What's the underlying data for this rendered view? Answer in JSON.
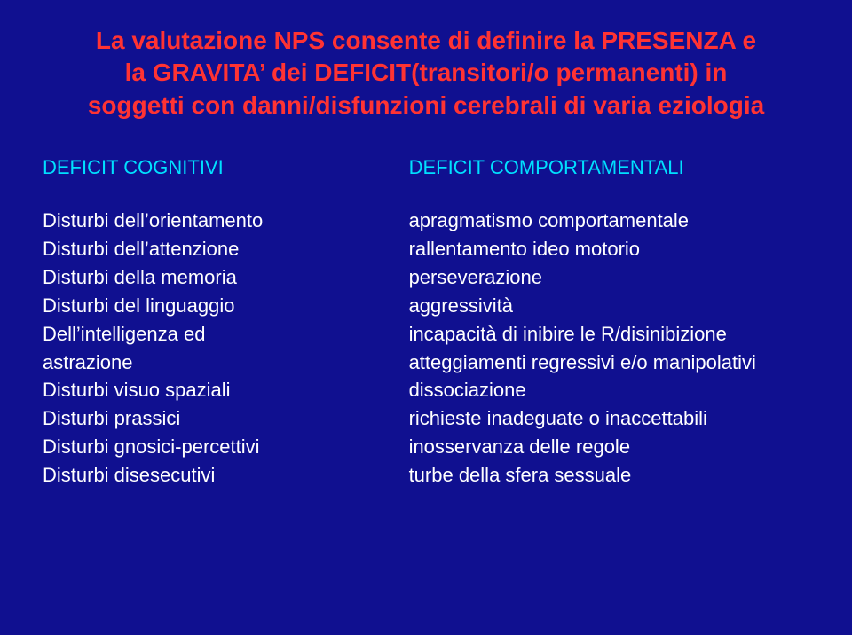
{
  "background_color": "#101090",
  "title": {
    "color": "#ff3333",
    "line1": "La valutazione NPS consente di definire la PRESENZA e",
    "line2": "la GRAVITA’ dei DEFICIT(transitori/o permanenti) in",
    "line3": "soggetti con danni/disfunzioni cerebrali di varia eziologia"
  },
  "left": {
    "header": "DEFICIT COGNITIVI",
    "header_color": "#00e0ff",
    "items": [
      "Disturbi dell’orientamento",
      "Disturbi dell’attenzione",
      "Disturbi della memoria",
      "Disturbi del linguaggio",
      "Dell’intelligenza ed",
      "astrazione",
      "Disturbi visuo spaziali",
      "Disturbi prassici",
      "Disturbi gnosici-percettivi",
      "Disturbi disesecutivi"
    ]
  },
  "right": {
    "header": "DEFICIT COMPORTAMENTALI",
    "header_color": "#00e0ff",
    "items": [
      "apragmatismo comportamentale",
      "rallentamento ideo motorio",
      "perseverazione",
      "aggressività",
      "incapacità di inibire le R/disinibizione",
      "atteggiamenti regressivi e/o manipolativi",
      "dissociazione",
      "richieste inadeguate o inaccettabili",
      "inosservanza delle regole",
      "turbe della sfera sessuale"
    ]
  }
}
